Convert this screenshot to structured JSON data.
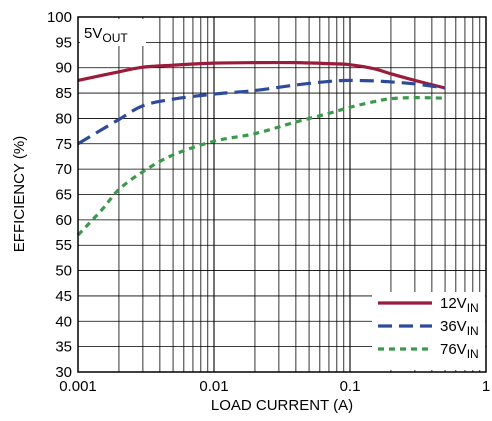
{
  "chart_data": {
    "type": "line",
    "title_box": {
      "main": "5V",
      "sub": "OUT"
    },
    "xlabel": "LOAD CURRENT (A)",
    "ylabel": "EFFICIENCY (%)",
    "x_scale": "log",
    "xlim": [
      0.001,
      1
    ],
    "ylim": [
      30,
      100
    ],
    "x_tick_labels": [
      "0.001",
      "0.01",
      "0.1",
      "1"
    ],
    "y_ticks": [
      30,
      35,
      40,
      45,
      50,
      55,
      60,
      65,
      70,
      75,
      80,
      85,
      90,
      95,
      100
    ],
    "grid": true,
    "legend_position": "bottom-right",
    "series": [
      {
        "name_main": "12V",
        "name_sub": "IN",
        "color": "#9b1b3a",
        "dash": "solid",
        "x": [
          0.001,
          0.002,
          0.003,
          0.005,
          0.01,
          0.02,
          0.04,
          0.07,
          0.1,
          0.15,
          0.2,
          0.3,
          0.5
        ],
        "y": [
          87.5,
          89.2,
          90.1,
          90.5,
          90.9,
          91.0,
          91.0,
          90.8,
          90.6,
          89.8,
          88.8,
          87.5,
          86.0
        ]
      },
      {
        "name_main": "36V",
        "name_sub": "IN",
        "color": "#2e4a9a",
        "dash": "dashed",
        "x": [
          0.001,
          0.002,
          0.003,
          0.005,
          0.01,
          0.02,
          0.04,
          0.07,
          0.1,
          0.15,
          0.2,
          0.3,
          0.5
        ],
        "y": [
          75.0,
          79.8,
          82.5,
          83.8,
          84.8,
          85.5,
          86.6,
          87.3,
          87.5,
          87.4,
          87.2,
          86.8,
          86.0
        ]
      },
      {
        "name_main": "76V",
        "name_sub": "IN",
        "color": "#3a9a4a",
        "dash": "dotted",
        "x": [
          0.001,
          0.0015,
          0.002,
          0.003,
          0.005,
          0.01,
          0.02,
          0.04,
          0.07,
          0.1,
          0.15,
          0.2,
          0.3,
          0.5
        ],
        "y": [
          57.0,
          62.0,
          66.0,
          69.5,
          72.8,
          75.5,
          77.0,
          79.3,
          81.0,
          82.2,
          83.3,
          83.9,
          84.1,
          84.0
        ]
      }
    ]
  }
}
